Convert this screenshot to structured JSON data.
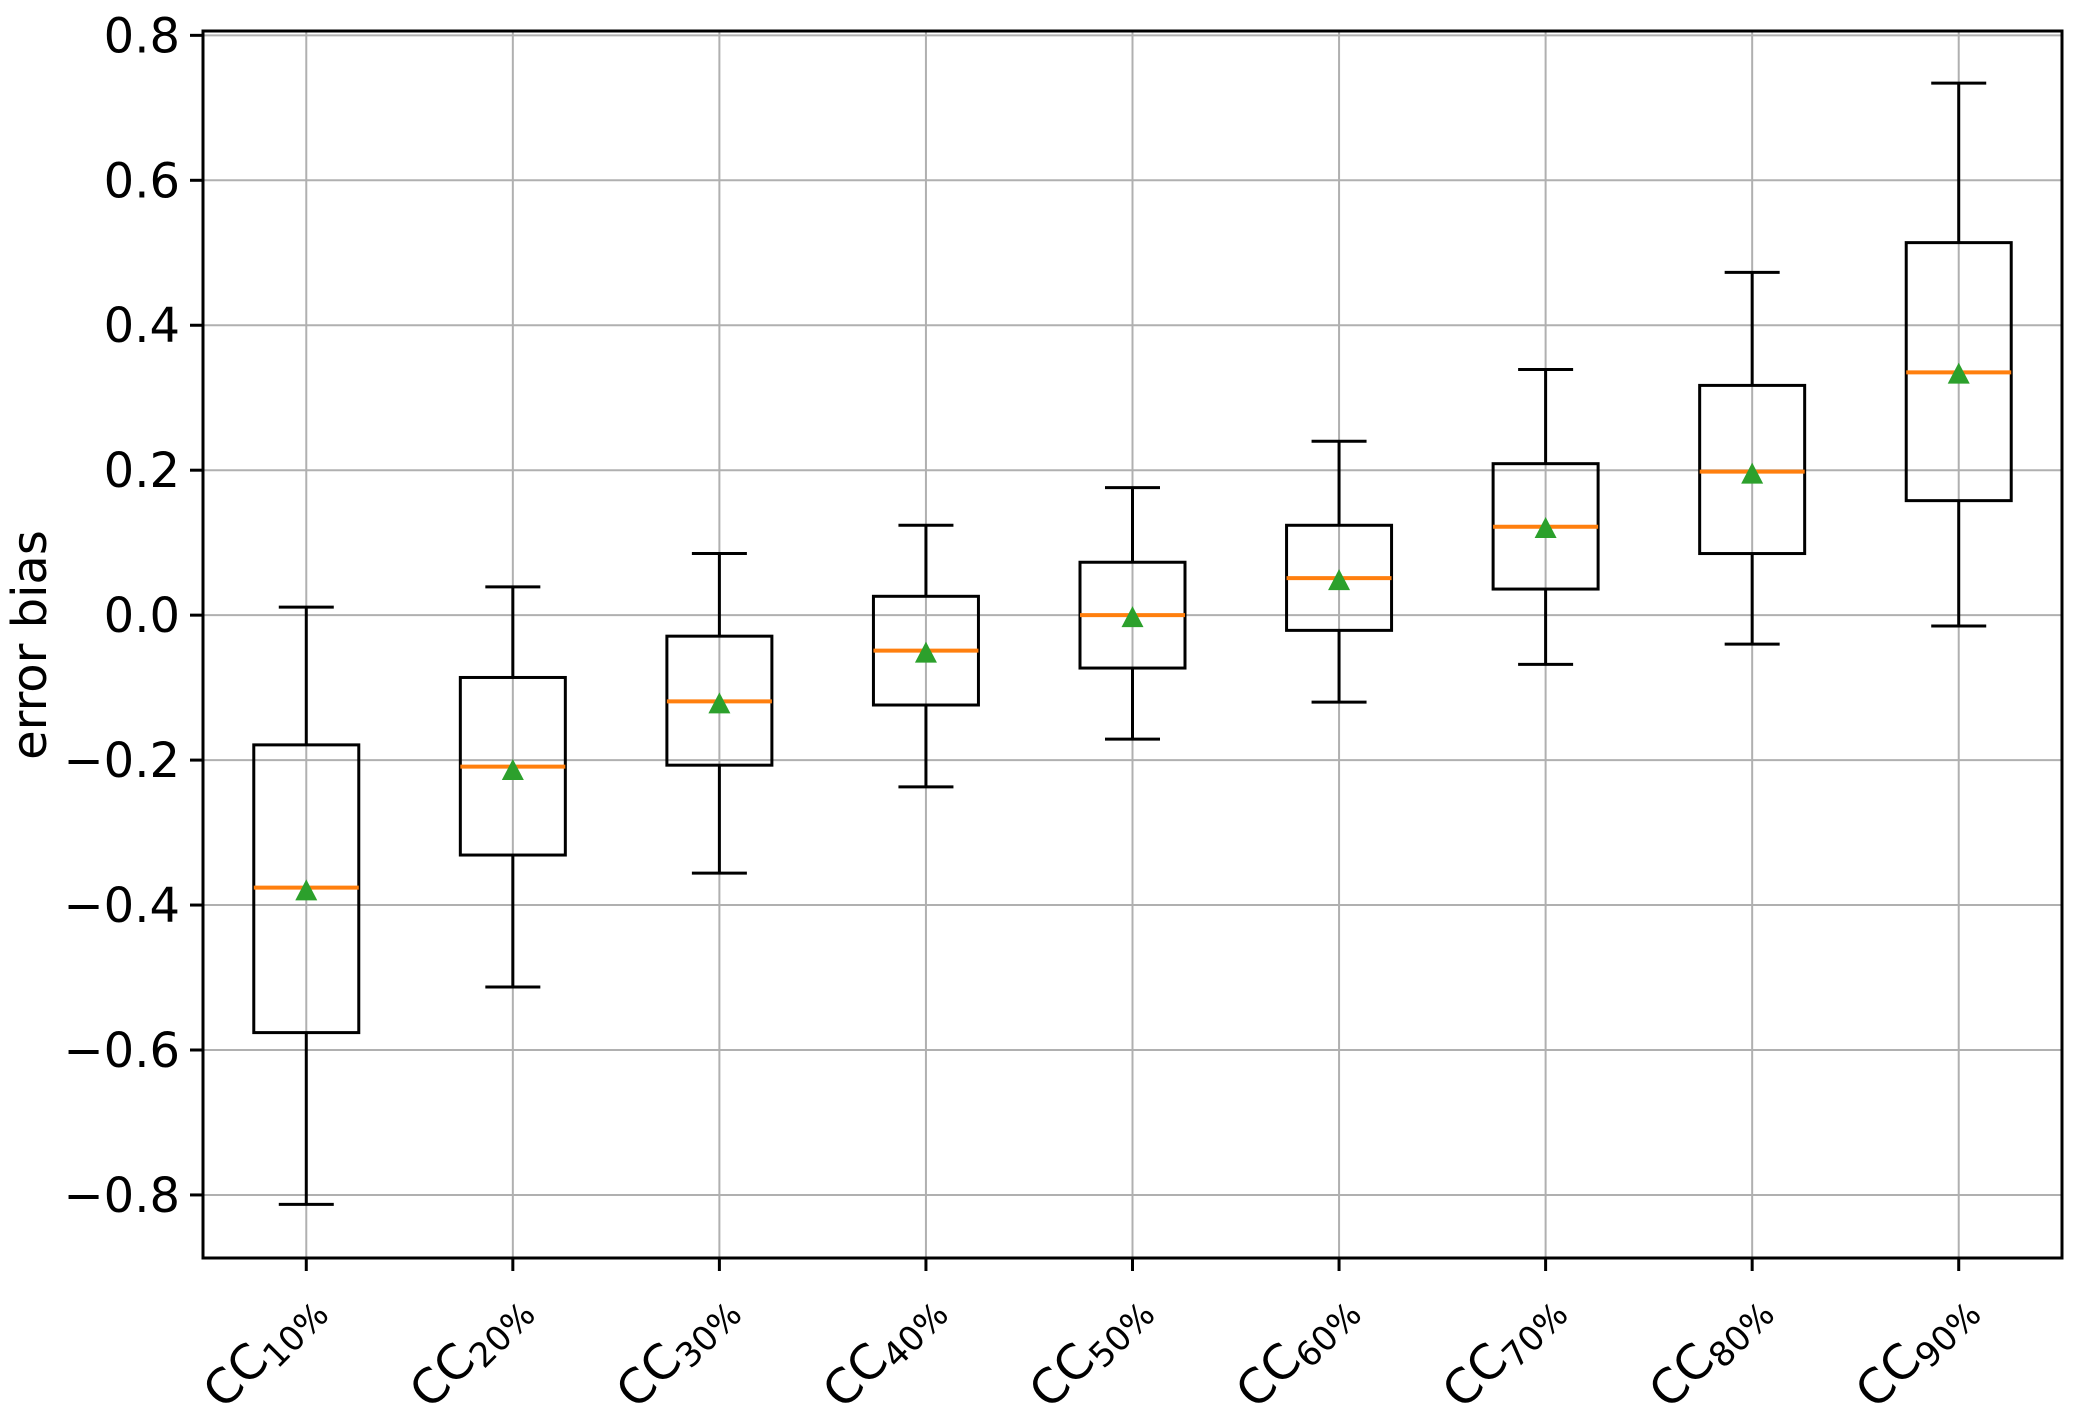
{
  "figure": {
    "background": "#ffffff"
  },
  "chart_data": {
    "type": "boxplot",
    "title": "",
    "xlabel": "",
    "ylabel": "error bias",
    "grid": true,
    "ylim": [
      -0.887,
      0.806
    ],
    "yticks": [
      0.8,
      0.6,
      0.4,
      0.2,
      0.0,
      -0.2,
      -0.4,
      -0.6,
      -0.8
    ],
    "ytick_labels": [
      "0.8",
      "0.6",
      "0.4",
      "0.2",
      "0.0",
      "−0.2",
      "−0.4",
      "−0.6",
      "−0.8"
    ],
    "categories": [
      {
        "id": "cc10",
        "main": "CC",
        "subscript": "10%"
      },
      {
        "id": "cc20",
        "main": "CC",
        "subscript": "20%"
      },
      {
        "id": "cc30",
        "main": "CC",
        "subscript": "30%"
      },
      {
        "id": "cc40",
        "main": "CC",
        "subscript": "40%"
      },
      {
        "id": "cc50",
        "main": "CC",
        "subscript": "50%"
      },
      {
        "id": "cc60",
        "main": "CC",
        "subscript": "60%"
      },
      {
        "id": "cc70",
        "main": "CC",
        "subscript": "70%"
      },
      {
        "id": "cc80",
        "main": "CC",
        "subscript": "80%"
      },
      {
        "id": "cc90",
        "main": "CC",
        "subscript": "90%"
      }
    ],
    "boxes": [
      {
        "category": "cc10",
        "whislo": -0.813,
        "q1": -0.576,
        "median": -0.376,
        "q3": -0.179,
        "whishi": 0.011,
        "mean": -0.379
      },
      {
        "category": "cc20",
        "whislo": -0.513,
        "q1": -0.331,
        "median": -0.209,
        "q3": -0.086,
        "whishi": 0.039,
        "mean": -0.213
      },
      {
        "category": "cc30",
        "whislo": -0.356,
        "q1": -0.207,
        "median": -0.119,
        "q3": -0.029,
        "whishi": 0.085,
        "mean": -0.121
      },
      {
        "category": "cc40",
        "whislo": -0.237,
        "q1": -0.124,
        "median": -0.049,
        "q3": 0.026,
        "whishi": 0.124,
        "mean": -0.051
      },
      {
        "category": "cc50",
        "whislo": -0.171,
        "q1": -0.073,
        "median": 0.0,
        "q3": 0.073,
        "whishi": 0.176,
        "mean": -0.002
      },
      {
        "category": "cc60",
        "whislo": -0.12,
        "q1": -0.021,
        "median": 0.051,
        "q3": 0.124,
        "whishi": 0.24,
        "mean": 0.049
      },
      {
        "category": "cc70",
        "whislo": -0.068,
        "q1": 0.036,
        "median": 0.122,
        "q3": 0.209,
        "whishi": 0.339,
        "mean": 0.121
      },
      {
        "category": "cc80",
        "whislo": -0.04,
        "q1": 0.085,
        "median": 0.198,
        "q3": 0.317,
        "whishi": 0.473,
        "mean": 0.196
      },
      {
        "category": "cc90",
        "whislo": -0.015,
        "q1": 0.158,
        "median": 0.335,
        "q3": 0.514,
        "whishi": 0.734,
        "mean": 0.334
      }
    ],
    "colors": {
      "box": "#000000",
      "whisker": "#000000",
      "cap": "#000000",
      "median": "#ff7f0e",
      "mean_marker": "#2ca02c",
      "grid": "#b0b0b0",
      "spine": "#000000",
      "background": "#ffffff"
    },
    "mean_marker_shape": "triangle-up"
  }
}
